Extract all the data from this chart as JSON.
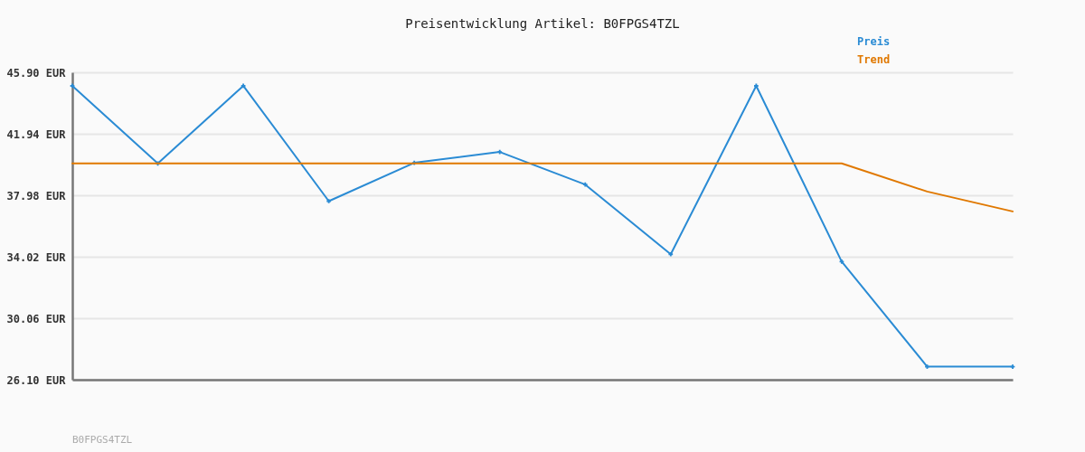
{
  "chart_data": {
    "type": "line",
    "title": "Preisentwicklung Artikel: B0FPGS4TZL",
    "categories": [
      null,
      null,
      null,
      null,
      null,
      null,
      null,
      null,
      null,
      null,
      null,
      null
    ],
    "series": [
      {
        "name": "Preis",
        "color": "#2a8bd4",
        "values": [
          45.03,
          40.03,
          45.03,
          37.6,
          40.07,
          40.77,
          38.67,
          34.18,
          45.03,
          33.71,
          26.94,
          26.94
        ]
      },
      {
        "name": "Trend",
        "color": "#e07800",
        "marker": "none",
        "values": [
          40.03,
          40.03,
          40.03,
          40.03,
          40.03,
          40.03,
          40.03,
          40.03,
          40.03,
          40.03,
          38.22,
          36.94
        ]
      }
    ],
    "ylim": [
      26.1,
      45.9
    ],
    "yticks": [
      {
        "value": 26.1,
        "label": "26.10 EUR"
      },
      {
        "value": 30.06,
        "label": "30.06 EUR"
      },
      {
        "value": 34.02,
        "label": "34.02 EUR"
      },
      {
        "value": 37.98,
        "label": "37.98 EUR"
      },
      {
        "value": 41.94,
        "label": "41.94 EUR"
      },
      {
        "value": 45.9,
        "label": "45.90 EUR"
      }
    ],
    "grid": "y",
    "legend": "top right",
    "marker": "cross",
    "annotations": [
      "B0FPGS4TZL"
    ]
  }
}
